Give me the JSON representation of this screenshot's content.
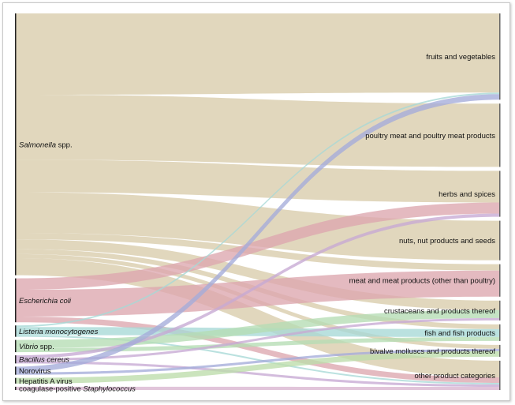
{
  "sources": [
    {
      "id": "salmonella",
      "label_italic": "Salmonella",
      "label_rest": " spp.",
      "color": "#d8ccaa",
      "amount": 322
    },
    {
      "id": "ecoli",
      "label_italic": "Escherichia coli",
      "label_rest": "",
      "color": "#dca7ae",
      "amount": 54
    },
    {
      "id": "listeria",
      "label_italic": "Listeria monocytogenes",
      "label_rest": "",
      "color": "#a6d8d6",
      "amount": 14
    },
    {
      "id": "vibrio",
      "label_italic": "Vibrio",
      "label_rest": " spp.",
      "color": "#b5dcb3",
      "amount": 15
    },
    {
      "id": "bacillus",
      "label_italic": "Bacillus cereus",
      "label_rest": "",
      "color": "#c6a9d4",
      "amount": 10
    },
    {
      "id": "norovirus",
      "label_italic": "",
      "label_rest": "Norovirus",
      "color": "#a4acda",
      "amount": 10
    },
    {
      "id": "hepa",
      "label_italic": "",
      "label_rest": "Hepatitis A virus",
      "color": "#bcdcaa",
      "amount": 7
    },
    {
      "id": "staph",
      "label_italic": "Staphylococcus",
      "label_rest": "coagulase-positive ",
      "italic_last": true,
      "color": "#d9b5cf",
      "amount": 4
    }
  ],
  "targets": [
    {
      "id": "fruits",
      "label": "fruits and vegetables"
    },
    {
      "id": "poultry",
      "label": "poultry meat and poultry meat products"
    },
    {
      "id": "herbs",
      "label": "herbs and spices"
    },
    {
      "id": "nuts",
      "label": "nuts, nut products and seeds"
    },
    {
      "id": "meat",
      "label": "meat and meat products (other than poultry)"
    },
    {
      "id": "crust",
      "label": "crustaceans and products thereof"
    },
    {
      "id": "fish",
      "label": "fish and fish products"
    },
    {
      "id": "bivalve",
      "label": "bivalve molluscs and products thereof"
    },
    {
      "id": "other",
      "label": "other product categories"
    }
  ],
  "links": [
    {
      "s": "salmonella",
      "t": "fruits",
      "v": 100
    },
    {
      "s": "salmonella",
      "t": "poultry",
      "v": 80
    },
    {
      "s": "salmonella",
      "t": "herbs",
      "v": 40
    },
    {
      "s": "salmonella",
      "t": "nuts",
      "v": 50
    },
    {
      "s": "salmonella",
      "t": "meat",
      "v": 8
    },
    {
      "s": "salmonella",
      "t": "crust",
      "v": 12
    },
    {
      "s": "salmonella",
      "t": "fish",
      "v": 6
    },
    {
      "s": "salmonella",
      "t": "bivalve",
      "v": 5
    },
    {
      "s": "salmonella",
      "t": "other",
      "v": 21
    },
    {
      "s": "ecoli",
      "t": "herbs",
      "v": 14
    },
    {
      "s": "ecoli",
      "t": "meat",
      "v": 33
    },
    {
      "s": "ecoli",
      "t": "other",
      "v": 7
    },
    {
      "s": "listeria",
      "t": "fruits",
      "v": 2
    },
    {
      "s": "listeria",
      "t": "fish",
      "v": 10
    },
    {
      "s": "listeria",
      "t": "other",
      "v": 2
    },
    {
      "s": "vibrio",
      "t": "crust",
      "v": 10
    },
    {
      "s": "vibrio",
      "t": "fish",
      "v": 5
    },
    {
      "s": "bacillus",
      "t": "herbs",
      "v": 4
    },
    {
      "s": "bacillus",
      "t": "crust",
      "v": 3
    },
    {
      "s": "bacillus",
      "t": "other",
      "v": 3
    },
    {
      "s": "norovirus",
      "t": "fruits",
      "v": 7
    },
    {
      "s": "norovirus",
      "t": "bivalve",
      "v": 3
    },
    {
      "s": "hepa",
      "t": "bivalve",
      "v": 7
    },
    {
      "s": "staph",
      "t": "other",
      "v": 4
    }
  ]
}
